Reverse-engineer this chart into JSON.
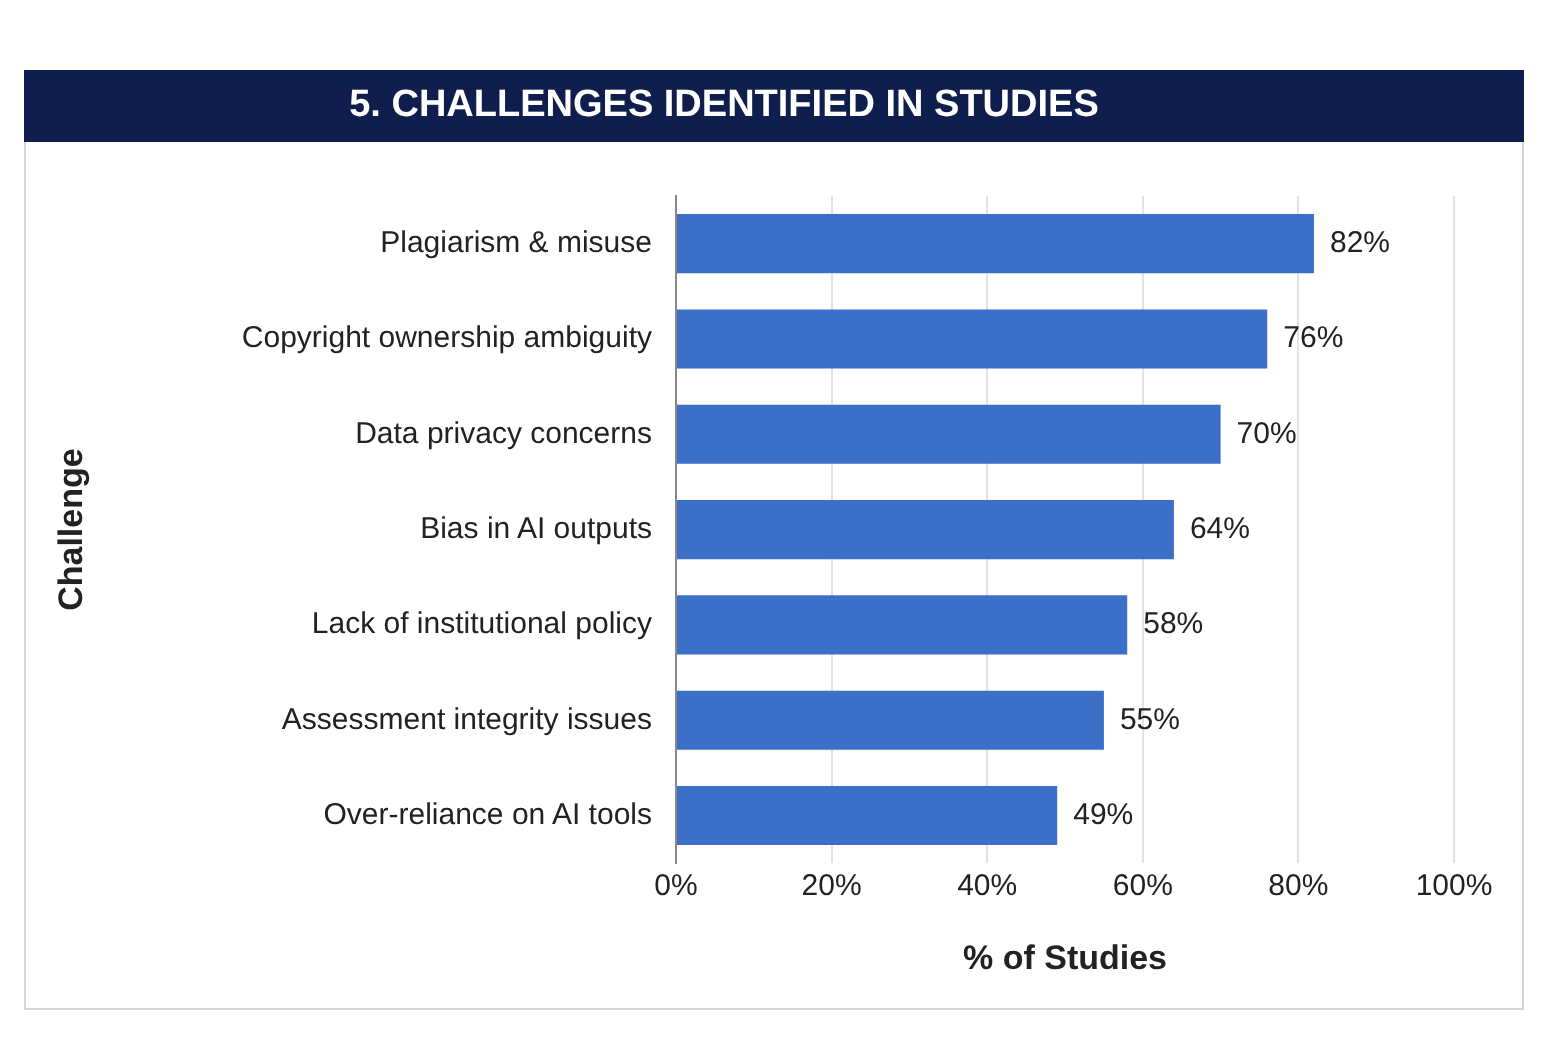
{
  "chart_data": {
    "type": "bar",
    "orientation": "horizontal",
    "title": "5. CHALLENGES IDENTIFIED IN STUDIES",
    "xlabel": "% of Studies",
    "ylabel": "Challenge",
    "categories": [
      "Plagiarism & misuse",
      "Copyright ownership ambiguity",
      "Data privacy concerns",
      "Bias in AI outputs",
      "Lack of institutional policy",
      "Assessment integrity issues",
      "Over-reliance on AI tools"
    ],
    "values": [
      82,
      76,
      70,
      64,
      58,
      55,
      49
    ],
    "value_labels": [
      "82%",
      "76%",
      "70%",
      "64%",
      "58%",
      "55%",
      "49%"
    ],
    "color": "#3b6fc8",
    "xlim": [
      0,
      100
    ],
    "xticks": [
      {
        "value": 0,
        "label": "0%"
      },
      {
        "value": 20,
        "label": "20%"
      },
      {
        "value": 40,
        "label": "40%"
      },
      {
        "value": 60,
        "label": "60%"
      },
      {
        "value": 80,
        "label": "80%"
      },
      {
        "value": 100,
        "label": "100%"
      }
    ],
    "grid": "x",
    "legend": false
  }
}
